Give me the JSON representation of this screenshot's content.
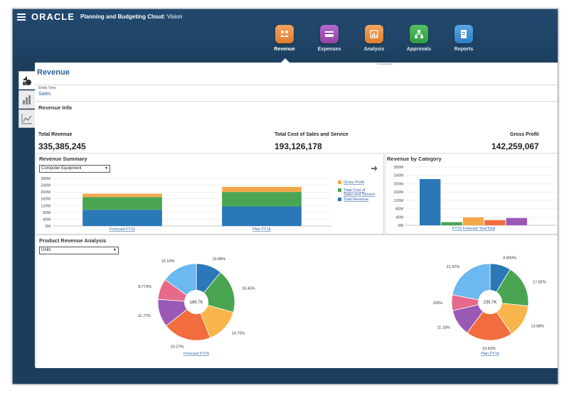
{
  "app": {
    "brand": "ORACLE",
    "product_name": "Planning and Budgeting Cloud:",
    "product_env": "Vision"
  },
  "nav": [
    {
      "label": "Revenue",
      "color": "#e98b3e",
      "icon": "revenue-icon",
      "active": true
    },
    {
      "label": "Expenses",
      "color": "#a04fb5",
      "icon": "expenses-icon",
      "active": false
    },
    {
      "label": "Analysis",
      "color": "#e98b3e",
      "icon": "analysis-icon",
      "active": false
    },
    {
      "label": "Approvals",
      "color": "#3aae4a",
      "icon": "approvals-icon",
      "active": false
    },
    {
      "label": "Reports",
      "color": "#3c8fd6",
      "icon": "reports-icon",
      "active": false
    }
  ],
  "page": {
    "title": "Revenue",
    "entity_label": "Entity View",
    "entity_value": "Sales",
    "revenue_info_title": "Revenue Info"
  },
  "kpis": [
    {
      "label": "Total Revenue",
      "value": "335,385,245"
    },
    {
      "label": "Total Cost of Sales and Service",
      "value": "193,126,178"
    },
    {
      "label": "Gross Profit",
      "value": "142,259,067"
    }
  ],
  "revenue_summary": {
    "title": "Revenue Summary",
    "selected": "Computer Equipment"
  },
  "revenue_by_category": {
    "title": "Revenue by Category"
  },
  "product_analysis": {
    "title": "Product Revenue Analysis",
    "selected": "Units"
  },
  "colors": {
    "blue": "#2a78b8",
    "green": "#4aa553",
    "orange": "#f5a84a",
    "accent_title": "#2c6399",
    "link": "#2c5ea6"
  },
  "chart_data": [
    {
      "type": "bar",
      "stacked": true,
      "categories": [
        "Forecast FY15",
        "Plan FY16"
      ],
      "series": [
        {
          "name": "Total Revenue",
          "color": "#2a78b8",
          "values": [
            95,
            115
          ]
        },
        {
          "name": "Total Cost of Sales and Service",
          "color": "#4aa553",
          "values": [
            75,
            85
          ]
        },
        {
          "name": "Gross Profit",
          "color": "#f5a84a",
          "values": [
            20,
            30
          ]
        }
      ],
      "ytick_labels": [
        "0M",
        "40M",
        "80M",
        "120M",
        "160M",
        "200M",
        "240M",
        "280M"
      ],
      "ylim": [
        0,
        280
      ],
      "legend": "right",
      "legend_order": [
        "Gross Profit",
        "Total Cost of Sales and Service",
        "Total Revenue"
      ],
      "grid": true
    },
    {
      "type": "bar",
      "categories": [
        "FY15 Forecast YearTotal"
      ],
      "series": [
        {
          "color": "#2a78b8",
          "values": [
            222
          ]
        },
        {
          "color": "#4aa553",
          "values": [
            15
          ]
        },
        {
          "color": "#f5a84a",
          "values": [
            38
          ]
        },
        {
          "color": "#f26d3d",
          "values": [
            25
          ]
        },
        {
          "color": "#9b59b6",
          "values": [
            35
          ]
        }
      ],
      "ytick_labels": [
        "0M",
        "40M",
        "80M",
        "120M",
        "160M",
        "200M",
        "240M",
        "280M"
      ],
      "ylim": [
        0,
        280
      ],
      "grid": true
    },
    {
      "type": "pie",
      "center_label": "189.7K",
      "xlabel": "Forecast FY15",
      "slices": [
        {
          "label": "10.89%",
          "value": 10.89,
          "color": "#2a78b8"
        },
        {
          "label": "18.45%",
          "value": 18.45,
          "color": "#4aa553"
        },
        {
          "label": "14.75%",
          "value": 14.75,
          "color": "#f9b54a"
        },
        {
          "label": "20.27%",
          "value": 20.27,
          "color": "#f26d3d"
        },
        {
          "label": "11.77%",
          "value": 11.77,
          "color": "#9b59b6"
        },
        {
          "label": "8.773%",
          "value": 8.773,
          "color": "#e86a8a"
        },
        {
          "label": "15.10%",
          "value": 15.1,
          "color": "#6cb8f0"
        }
      ]
    },
    {
      "type": "pie",
      "center_label": "235.7K",
      "xlabel": "Plan FY16",
      "slices": [
        {
          "label": "8.800%",
          "value": 8.8,
          "color": "#2a78b8"
        },
        {
          "label": "17.82%",
          "value": 17.82,
          "color": "#4aa553"
        },
        {
          "label": "13.98%",
          "value": 13.98,
          "color": "#f9b54a"
        },
        {
          "label": "19.63%",
          "value": 19.63,
          "color": "#f26d3d"
        },
        {
          "label": "11.18%",
          "value": 11.18,
          "color": "#9b59b6"
        },
        {
          "label": "6.626%",
          "value": 6.626,
          "color": "#e86a8a"
        },
        {
          "label": "21.97%",
          "value": 21.97,
          "color": "#6cb8f0"
        }
      ]
    }
  ]
}
